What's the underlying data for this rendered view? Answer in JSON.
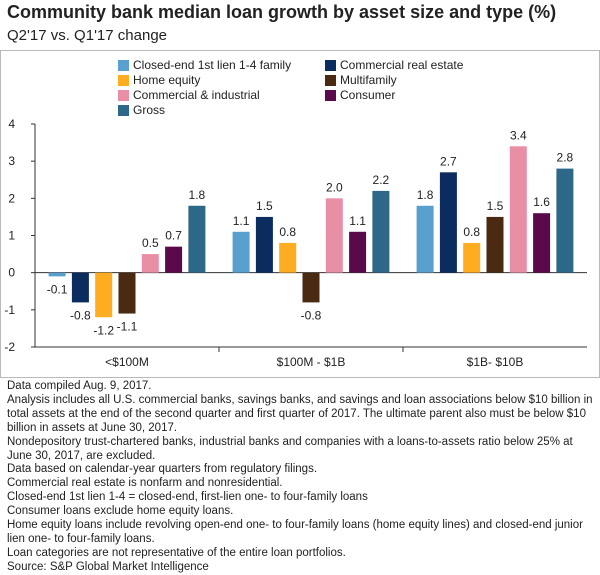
{
  "title": "Community bank median loan growth by asset size and type (%)",
  "subtitle": "Q2'17 vs. Q1'17 change",
  "chart_data": {
    "type": "bar",
    "categories": [
      "<$100M",
      "$100M - $1B",
      "$1B- $10B"
    ],
    "series": [
      {
        "name": "Closed-end 1st lien 1-4 family",
        "color": "#5aa0cf",
        "values": [
          -0.1,
          1.1,
          1.8
        ],
        "labels": [
          "-0.1",
          "1.1",
          "1.8"
        ]
      },
      {
        "name": "Commercial real estate",
        "color": "#0b2c5f",
        "values": [
          -0.8,
          1.5,
          2.7
        ],
        "labels": [
          "-0.8",
          "1.5",
          "2.7"
        ]
      },
      {
        "name": "Home equity",
        "color": "#ffad20",
        "values": [
          -1.2,
          0.8,
          0.8
        ],
        "labels": [
          "-1.2",
          "0.8",
          "0.8"
        ]
      },
      {
        "name": "Multifamily",
        "color": "#4a2a12",
        "values": [
          -1.1,
          -0.8,
          1.5
        ],
        "labels": [
          "-1.1",
          "-0.8",
          "1.5"
        ]
      },
      {
        "name": "Commercial & industrial",
        "color": "#e88fa6",
        "values": [
          0.5,
          2.0,
          3.4
        ],
        "labels": [
          "0.5",
          "2.0",
          "3.4"
        ]
      },
      {
        "name": "Consumer",
        "color": "#5a0a4a",
        "values": [
          0.7,
          1.1,
          1.6
        ],
        "labels": [
          "0.7",
          "1.1",
          "1.6"
        ]
      },
      {
        "name": "Gross",
        "color": "#2e6889",
        "values": [
          1.8,
          2.2,
          2.8
        ],
        "labels": [
          "1.8",
          "2.2",
          "2.8"
        ]
      }
    ],
    "ylim": [
      -2,
      4
    ],
    "yticks": [
      -2,
      -1,
      0,
      1,
      2,
      3,
      4
    ],
    "xlabel": "",
    "ylabel": "",
    "legend_position": "top",
    "grid": false
  },
  "notes": [
    "Data compiled Aug. 9, 2017.",
    "Analysis includes all U.S. commercial banks, savings banks, and savings and loan associations below $10 billion in total assets at the end of the second quarter and first quarter of 2017. The ultimate parent also must be below $10 billion in assets at June 30, 2017.",
    "Nondepository trust-chartered banks, industrial banks and companies with a loans-to-assets ratio below 25% at June 30, 2017, are excluded.",
    "Data based on calendar-year quarters from regulatory filings.",
    "Commercial real estate is nonfarm and nonresidential.",
    "Closed-end 1st lien 1-4 = closed-end, first-lien one- to four-family loans",
    "Consumer loans exclude home equity loans.",
    "Home equity loans include revolving open-end one- to four-family loans (home equity lines) and closed-end junior lien one- to four-family loans.",
    "Loan categories are not representative of the entire loan portfolios.",
    "Source: S&P Global Market Intelligence"
  ]
}
